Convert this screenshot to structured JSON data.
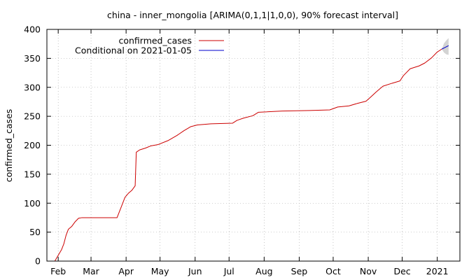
{
  "chart_data": {
    "type": "line",
    "title": "china - inner_mongolia [ARIMA(0,1,1|1,0,0), 90% forecast interval]",
    "ylabel": "confirmed_cases",
    "xlabel": "",
    "ylim": [
      0,
      400
    ],
    "y_ticks": [
      0,
      50,
      100,
      150,
      200,
      250,
      300,
      350,
      400
    ],
    "x_range": [
      "2020-01-22",
      "2021-01-21"
    ],
    "x_ticks": [
      {
        "date": "2020-02-01",
        "label": "Feb"
      },
      {
        "date": "2020-03-01",
        "label": "Mar"
      },
      {
        "date": "2020-04-01",
        "label": "Apr"
      },
      {
        "date": "2020-05-01",
        "label": "May"
      },
      {
        "date": "2020-06-01",
        "label": "Jun"
      },
      {
        "date": "2020-07-01",
        "label": "Jul"
      },
      {
        "date": "2020-08-01",
        "label": "Aug"
      },
      {
        "date": "2020-09-01",
        "label": "Sep"
      },
      {
        "date": "2020-10-01",
        "label": "Oct"
      },
      {
        "date": "2020-11-01",
        "label": "Nov"
      },
      {
        "date": "2020-12-01",
        "label": "Dec"
      },
      {
        "date": "2021-01-01",
        "label": "2021"
      }
    ],
    "grid": true,
    "legend_position": "top-left",
    "series": [
      {
        "name": "confirmed_cases",
        "color": "#cc0000",
        "points": [
          [
            "2020-01-29",
            0
          ],
          [
            "2020-02-01",
            10
          ],
          [
            "2020-02-04",
            20
          ],
          [
            "2020-02-06",
            30
          ],
          [
            "2020-02-08",
            45
          ],
          [
            "2020-02-10",
            55
          ],
          [
            "2020-02-13",
            60
          ],
          [
            "2020-02-16",
            68
          ],
          [
            "2020-02-19",
            74
          ],
          [
            "2020-02-22",
            75
          ],
          [
            "2020-03-10",
            75
          ],
          [
            "2020-03-24",
            75
          ],
          [
            "2020-03-26",
            85
          ],
          [
            "2020-03-28",
            95
          ],
          [
            "2020-03-31",
            110
          ],
          [
            "2020-04-03",
            117
          ],
          [
            "2020-04-06",
            122
          ],
          [
            "2020-04-09",
            130
          ],
          [
            "2020-04-10",
            188
          ],
          [
            "2020-04-13",
            192
          ],
          [
            "2020-04-18",
            195
          ],
          [
            "2020-04-23",
            199
          ],
          [
            "2020-04-29",
            201
          ],
          [
            "2020-05-08",
            208
          ],
          [
            "2020-05-16",
            217
          ],
          [
            "2020-05-22",
            225
          ],
          [
            "2020-05-28",
            232
          ],
          [
            "2020-06-03",
            235
          ],
          [
            "2020-06-15",
            237
          ],
          [
            "2020-07-04",
            238
          ],
          [
            "2020-07-08",
            243
          ],
          [
            "2020-07-14",
            247
          ],
          [
            "2020-07-22",
            251
          ],
          [
            "2020-07-27",
            257
          ],
          [
            "2020-08-17",
            259
          ],
          [
            "2020-09-10",
            260
          ],
          [
            "2020-09-28",
            261
          ],
          [
            "2020-10-05",
            266
          ],
          [
            "2020-10-15",
            268
          ],
          [
            "2020-10-22",
            272
          ],
          [
            "2020-10-30",
            276
          ],
          [
            "2020-11-03",
            283
          ],
          [
            "2020-11-08",
            292
          ],
          [
            "2020-11-14",
            302
          ],
          [
            "2020-11-22",
            307
          ],
          [
            "2020-11-29",
            311
          ],
          [
            "2020-12-02",
            320
          ],
          [
            "2020-12-08",
            332
          ],
          [
            "2020-12-16",
            337
          ],
          [
            "2020-12-21",
            342
          ],
          [
            "2020-12-27",
            351
          ],
          [
            "2021-01-01",
            361
          ],
          [
            "2021-01-05",
            366
          ]
        ]
      },
      {
        "name": "Conditional on 2021-01-05",
        "color": "#0000cc",
        "points": [
          [
            "2021-01-05",
            366
          ],
          [
            "2021-01-11",
            372
          ]
        ]
      }
    ],
    "forecast_interval": {
      "color": "#d3d3d3",
      "points": [
        [
          "2021-01-05",
          366,
          366
        ],
        [
          "2021-01-07",
          360,
          376
        ],
        [
          "2021-01-09",
          357,
          381
        ],
        [
          "2021-01-11",
          356,
          385
        ]
      ]
    }
  }
}
